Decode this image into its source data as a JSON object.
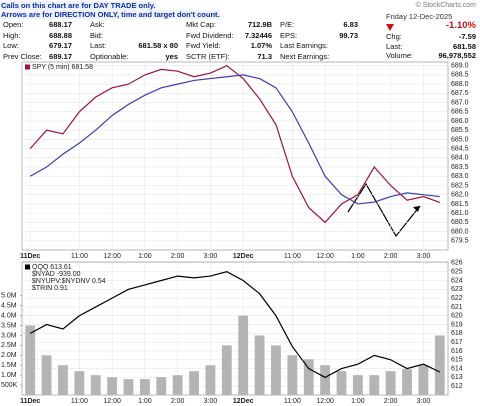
{
  "header": {
    "notes": [
      "Calls on this chart are for DAY TRADE only.",
      "Arrows are for DIRECTION ONLY, time and target don't count."
    ],
    "quote_columns": [
      [
        [
          "Open:",
          "688.17"
        ],
        [
          "High:",
          "688.88"
        ],
        [
          "Low:",
          "679.17"
        ],
        [
          "Prev Close:",
          "689.17"
        ]
      ],
      [
        [
          "Ask:"
        ],
        [
          "Bid:"
        ],
        [
          "Last:",
          "681.58 x 80"
        ],
        [
          "Optionable:",
          "yes"
        ]
      ],
      [
        [
          "Mkt Cap:",
          "712.9B"
        ],
        [
          "Fwd Dividend:",
          "7.32446"
        ],
        [
          "Fwd Yield:",
          "1.07%"
        ],
        [
          "SCTR (ETF):",
          "71.3"
        ]
      ],
      [
        [
          "P/E:",
          "6.83"
        ],
        [
          "EPS:",
          "99.73"
        ],
        [
          "Last Earnings:"
        ],
        [
          "Next Earnings:"
        ]
      ]
    ],
    "copyright": "© StockCharts.com",
    "date": "Friday 12-Dec-2025",
    "change_pct": "-1.10%",
    "summary": [
      [
        "Chg:",
        "-7.59"
      ],
      [
        "Last:",
        "681.58"
      ],
      [
        "Volume:",
        "96,978,552"
      ]
    ]
  },
  "chart_data": [
    {
      "type": "line",
      "categories": [
        "11Dec",
        null,
        null,
        "11:00",
        null,
        "12:00",
        null,
        "1:00",
        null,
        "2:00",
        null,
        "3:00",
        null,
        "12Dec",
        null,
        null,
        "11:00",
        null,
        "12:00",
        null,
        "1:00",
        null,
        "2:00",
        null,
        "3:00",
        null
      ],
      "series": [
        {
          "name": "SPY (5 min) 681.58",
          "color": "#a01040",
          "values": [
            684.5,
            685.5,
            685.3,
            686.5,
            687.3,
            687.8,
            688.0,
            688.5,
            688.8,
            688.7,
            688.4,
            688.6,
            689.0,
            688.3,
            687.2,
            685.8,
            683.0,
            681.3,
            680.5,
            681.5,
            682.0,
            683.5,
            682.5,
            681.7,
            681.9,
            681.58
          ]
        },
        {
          "color": "#3c3cb4",
          "values": [
            683.0,
            683.5,
            684.2,
            684.8,
            685.5,
            686.3,
            686.9,
            687.4,
            687.8,
            688.0,
            688.2,
            688.3,
            688.4,
            688.5,
            688.3,
            687.8,
            686.5,
            684.8,
            683.0,
            682.0,
            681.5,
            681.6,
            681.9,
            682.1,
            682.0,
            681.9
          ]
        }
      ],
      "ylim": [
        679.0,
        689.2
      ],
      "yticks": [
        679.5,
        {
          "value": 680,
          "label": "680.0"
        },
        680.5,
        {
          "value": 681,
          "label": "681.0"
        },
        681.5,
        {
          "value": 682,
          "label": "682.0"
        },
        682.5,
        {
          "value": 683,
          "label": "683.0"
        },
        683.5,
        {
          "value": 684,
          "label": "684.0"
        },
        684.5,
        {
          "value": 685,
          "label": "685.0"
        },
        685.5,
        {
          "value": 686,
          "label": "686.0"
        },
        686.5,
        {
          "value": 687,
          "label": "687.0"
        },
        687.5,
        {
          "value": 688,
          "label": "688.0"
        },
        688.5,
        {
          "value": 689,
          "label": "689.0"
        }
      ],
      "grid": true
    },
    {
      "type": "line",
      "categories": [
        "11Dec",
        null,
        null,
        "11:00",
        null,
        "12:00",
        null,
        "1:00",
        null,
        "2:00",
        null,
        "3:00",
        null,
        "12Dec",
        null,
        null,
        "11:00",
        null,
        "12:00",
        null,
        "1:00",
        null,
        "2:00",
        null,
        "3:00",
        null
      ],
      "legend_items": [
        "$NYAD -939.00",
        "$NYUPV:$NYDNV 0.54",
        "$TRIN 0.91"
      ],
      "series": [
        {
          "type": "bar",
          "axis": "y2",
          "color": "#b4b4b4",
          "values": [
            3500000,
            2000000,
            1500000,
            1200000,
            1000000,
            900000,
            800000,
            800000,
            900000,
            1000000,
            1200000,
            1500000,
            2500000,
            4000000,
            3000000,
            2500000,
            2000000,
            1800000,
            1500000,
            1200000,
            1000000,
            1000000,
            1200000,
            1300000,
            1500000,
            3000000
          ]
        },
        {
          "name": "QQQ 613.61",
          "color": "#000000",
          "values": [
            618,
            619,
            618.5,
            620,
            621,
            622,
            623,
            623.5,
            624,
            624.5,
            624.3,
            624.5,
            625,
            624,
            622.5,
            620,
            616.5,
            614,
            613,
            614,
            614.5,
            615.5,
            615,
            614,
            614.5,
            613.61
          ]
        }
      ],
      "ylim": [
        611,
        626.1
      ],
      "yticks": [
        612,
        613,
        614,
        615,
        616,
        617,
        618,
        619,
        620,
        621,
        622,
        623,
        624,
        625,
        626
      ],
      "y2lim": [
        0,
        6700000
      ],
      "y2ticks": [
        {
          "value": 500000,
          "label": "500K"
        },
        {
          "value": 1000000,
          "label": "1.0M"
        },
        {
          "value": 1500000,
          "label": "1.5M"
        },
        {
          "value": 2000000,
          "label": "2.0M"
        },
        {
          "value": 2500000,
          "label": "2.5M"
        },
        {
          "value": 3000000,
          "label": "3.0M"
        },
        {
          "value": 3500000,
          "label": "3.5M"
        },
        {
          "value": 4000000,
          "label": "4.0M"
        },
        {
          "value": 4500000,
          "label": "4.5M"
        },
        {
          "value": 5000000,
          "label": "5.0M"
        }
      ],
      "grid": true
    }
  ]
}
